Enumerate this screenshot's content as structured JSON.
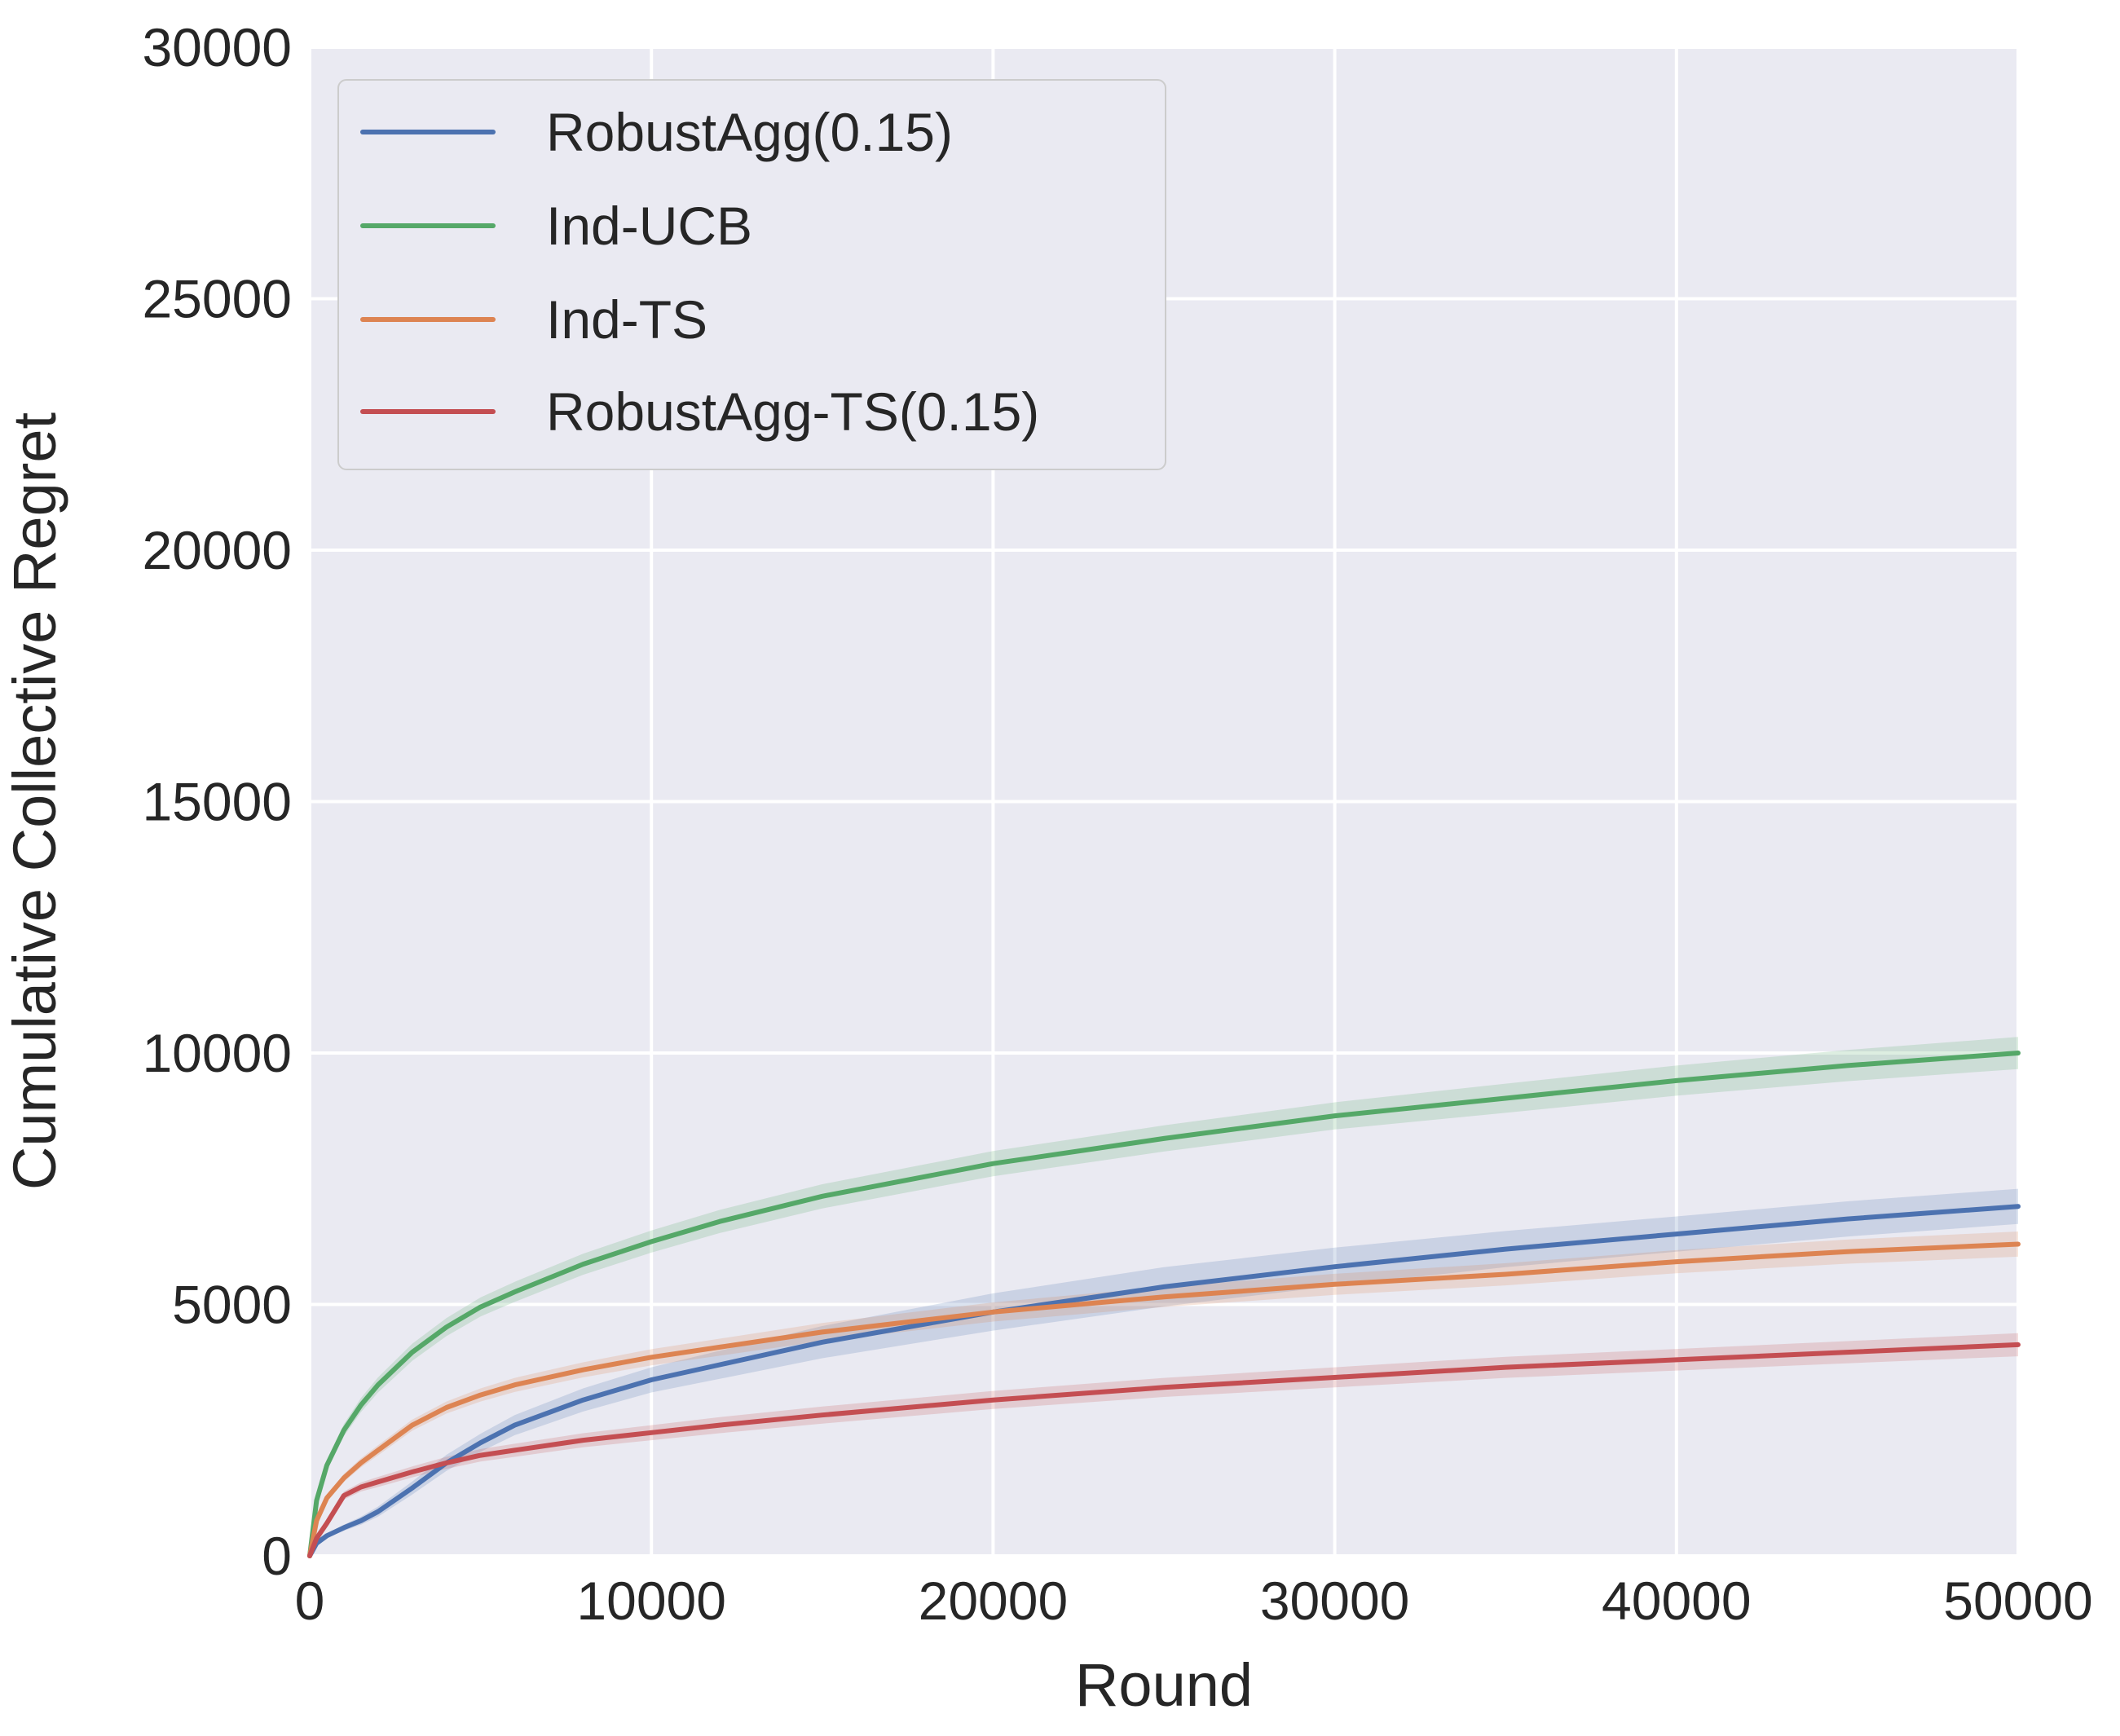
{
  "chart_data": {
    "type": "line",
    "xlabel": "Round",
    "ylabel": "Cumulative Collective Regret",
    "xlim": [
      0,
      50000
    ],
    "ylim": [
      0,
      30000
    ],
    "xticks": [
      "0",
      "10000",
      "20000",
      "30000",
      "40000",
      "50000"
    ],
    "yticks": [
      "0",
      "5000",
      "10000",
      "15000",
      "20000",
      "25000",
      "30000"
    ],
    "grid": true,
    "legend_position": "top-left",
    "x": [
      0,
      200,
      500,
      1000,
      1500,
      2000,
      3000,
      4000,
      5000,
      6000,
      8000,
      10000,
      12000,
      15000,
      20000,
      25000,
      30000,
      35000,
      40000,
      45000,
      50000
    ],
    "series": [
      {
        "name": "RobustAgg(0.15)",
        "color": "#4c72b0",
        "values": [
          0,
          250,
          400,
          560,
          700,
          880,
          1350,
          1850,
          2250,
          2600,
          3100,
          3500,
          3800,
          4250,
          4850,
          5350,
          5750,
          6100,
          6400,
          6700,
          6950
        ],
        "band": [
          0,
          20,
          40,
          60,
          80,
          100,
          130,
          160,
          180,
          200,
          230,
          250,
          280,
          320,
          370,
          390,
          380,
          360,
          350,
          350,
          350
        ]
      },
      {
        "name": "Ind-UCB",
        "color": "#55a868",
        "values": [
          0,
          1100,
          1800,
          2500,
          3000,
          3400,
          4050,
          4550,
          4950,
          5250,
          5800,
          6250,
          6650,
          7150,
          7800,
          8300,
          8750,
          9100,
          9450,
          9750,
          10000
        ],
        "band": [
          0,
          60,
          90,
          120,
          140,
          150,
          170,
          180,
          190,
          200,
          210,
          220,
          230,
          240,
          250,
          260,
          270,
          290,
          300,
          310,
          320
        ]
      },
      {
        "name": "Ind-TS",
        "color": "#dd8452",
        "values": [
          0,
          700,
          1150,
          1550,
          1850,
          2100,
          2600,
          2950,
          3200,
          3400,
          3700,
          3950,
          4150,
          4450,
          4850,
          5150,
          5400,
          5600,
          5850,
          6050,
          6200
        ],
        "band": [
          0,
          40,
          60,
          80,
          90,
          100,
          110,
          120,
          130,
          140,
          150,
          160,
          170,
          180,
          190,
          200,
          210,
          220,
          230,
          240,
          250
        ]
      },
      {
        "name": "RobustAgg-TS(0.15)",
        "color": "#c44e52",
        "values": [
          0,
          350,
          650,
          1200,
          1370,
          1470,
          1670,
          1850,
          2000,
          2100,
          2300,
          2450,
          2600,
          2800,
          3100,
          3350,
          3550,
          3750,
          3900,
          4050,
          4200
        ],
        "band": [
          0,
          40,
          60,
          80,
          90,
          100,
          110,
          120,
          125,
          130,
          140,
          150,
          160,
          170,
          180,
          190,
          200,
          210,
          215,
          220,
          230
        ]
      }
    ]
  }
}
